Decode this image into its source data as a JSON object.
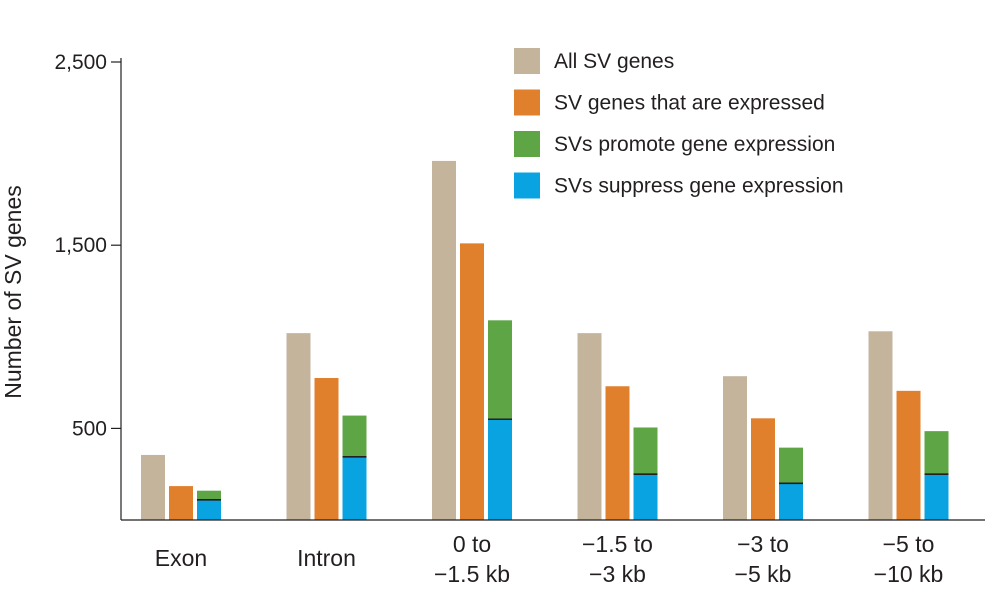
{
  "chart_data": {
    "type": "bar",
    "title": "",
    "xlabel": "",
    "ylabel": "Number of SV genes",
    "ylim": [
      0,
      2500
    ],
    "yticks": [
      {
        "value": 500,
        "label": "500"
      },
      {
        "value": 1500,
        "label": "1,500"
      },
      {
        "value": 2500,
        "label": "2,500"
      }
    ],
    "grid": false,
    "legend_position": "top-right",
    "categories": [
      {
        "lines": [
          "Exon"
        ]
      },
      {
        "lines": [
          "Intron"
        ]
      },
      {
        "lines": [
          "0 to",
          "−1.5 kb"
        ]
      },
      {
        "lines": [
          "−1.5 to",
          "−3 kb"
        ]
      },
      {
        "lines": [
          "−3 to",
          "−5 kb"
        ]
      },
      {
        "lines": [
          "−5 to",
          "−10 kb"
        ]
      }
    ],
    "series": [
      {
        "name": "All SV genes",
        "color": "#c4b49c",
        "stack": "all",
        "values": [
          355,
          1020,
          1960,
          1020,
          785,
          1030
        ]
      },
      {
        "name": "SV genes that are expressed",
        "color": "#e07f2c",
        "stack": "expr",
        "values": [
          185,
          775,
          1510,
          730,
          555,
          705
        ]
      },
      {
        "name": "SVs promote gene expression",
        "color": "#5da545",
        "stack": "reg",
        "values": [
          50,
          225,
          540,
          255,
          195,
          235
        ]
      },
      {
        "name": "SVs suppress gene expression",
        "color": "#0aa3e2",
        "stack": "reg",
        "values": [
          110,
          345,
          550,
          250,
          200,
          250
        ]
      }
    ]
  }
}
